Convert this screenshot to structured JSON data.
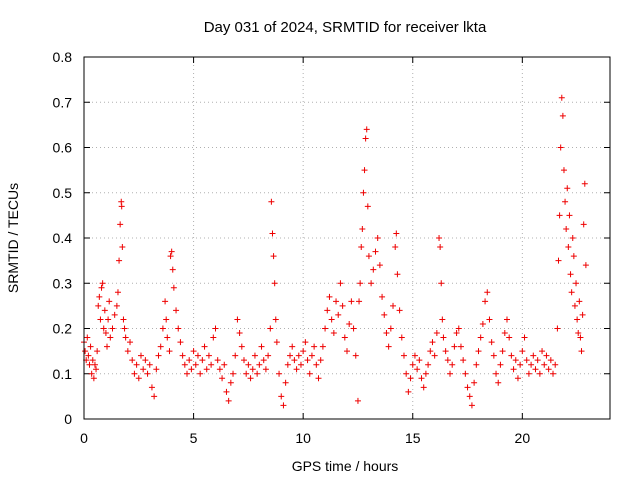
{
  "chart_data": {
    "type": "scatter",
    "title": "Day 031 of 2024, SRMTID for receiver lkta",
    "xlabel": "GPS time / hours",
    "ylabel": "SRMTID / TECUs",
    "xlim": [
      0,
      24
    ],
    "ylim": [
      0,
      0.8
    ],
    "xticks": [
      0,
      5,
      10,
      15,
      20
    ],
    "yticks": [
      0,
      0.1,
      0.2,
      0.3,
      0.4,
      0.5,
      0.6,
      0.7,
      0.8
    ],
    "grid": true,
    "marker": "+",
    "series": [
      {
        "name": "SRMTID",
        "color": "#ee0000",
        "points": [
          [
            0.0,
            0.17
          ],
          [
            0.05,
            0.15
          ],
          [
            0.1,
            0.13
          ],
          [
            0.15,
            0.18
          ],
          [
            0.2,
            0.14
          ],
          [
            0.25,
            0.12
          ],
          [
            0.3,
            0.16
          ],
          [
            0.35,
            0.1
          ],
          [
            0.4,
            0.13
          ],
          [
            0.45,
            0.09
          ],
          [
            0.5,
            0.12
          ],
          [
            0.55,
            0.11
          ],
          [
            0.6,
            0.15
          ],
          [
            0.65,
            0.25
          ],
          [
            0.7,
            0.27
          ],
          [
            0.75,
            0.22
          ],
          [
            0.8,
            0.29
          ],
          [
            0.85,
            0.3
          ],
          [
            0.9,
            0.2
          ],
          [
            0.95,
            0.24
          ],
          [
            1.0,
            0.19
          ],
          [
            1.05,
            0.16
          ],
          [
            1.1,
            0.22
          ],
          [
            1.15,
            0.26
          ],
          [
            1.2,
            0.18
          ],
          [
            1.3,
            0.2
          ],
          [
            1.4,
            0.23
          ],
          [
            1.5,
            0.25
          ],
          [
            1.55,
            0.28
          ],
          [
            1.6,
            0.35
          ],
          [
            1.65,
            0.43
          ],
          [
            1.7,
            0.48
          ],
          [
            1.72,
            0.47
          ],
          [
            1.75,
            0.38
          ],
          [
            1.8,
            0.22
          ],
          [
            1.85,
            0.2
          ],
          [
            1.9,
            0.18
          ],
          [
            2.0,
            0.15
          ],
          [
            2.1,
            0.17
          ],
          [
            2.2,
            0.13
          ],
          [
            2.3,
            0.1
          ],
          [
            2.4,
            0.12
          ],
          [
            2.5,
            0.09
          ],
          [
            2.6,
            0.14
          ],
          [
            2.7,
            0.11
          ],
          [
            2.8,
            0.13
          ],
          [
            2.9,
            0.1
          ],
          [
            3.0,
            0.12
          ],
          [
            3.1,
            0.07
          ],
          [
            3.2,
            0.05
          ],
          [
            3.3,
            0.11
          ],
          [
            3.4,
            0.14
          ],
          [
            3.5,
            0.16
          ],
          [
            3.6,
            0.2
          ],
          [
            3.7,
            0.26
          ],
          [
            3.75,
            0.22
          ],
          [
            3.8,
            0.18
          ],
          [
            3.9,
            0.15
          ],
          [
            3.95,
            0.36
          ],
          [
            4.0,
            0.37
          ],
          [
            4.05,
            0.33
          ],
          [
            4.1,
            0.29
          ],
          [
            4.2,
            0.24
          ],
          [
            4.3,
            0.2
          ],
          [
            4.4,
            0.17
          ],
          [
            4.5,
            0.14
          ],
          [
            4.6,
            0.12
          ],
          [
            4.7,
            0.1
          ],
          [
            4.8,
            0.13
          ],
          [
            4.9,
            0.11
          ],
          [
            5.0,
            0.15
          ],
          [
            5.1,
            0.12
          ],
          [
            5.2,
            0.14
          ],
          [
            5.3,
            0.1
          ],
          [
            5.4,
            0.13
          ],
          [
            5.5,
            0.16
          ],
          [
            5.6,
            0.11
          ],
          [
            5.7,
            0.14
          ],
          [
            5.8,
            0.12
          ],
          [
            5.9,
            0.18
          ],
          [
            6.0,
            0.2
          ],
          [
            6.1,
            0.13
          ],
          [
            6.2,
            0.11
          ],
          [
            6.3,
            0.09
          ],
          [
            6.4,
            0.12
          ],
          [
            6.5,
            0.06
          ],
          [
            6.6,
            0.04
          ],
          [
            6.7,
            0.08
          ],
          [
            6.8,
            0.1
          ],
          [
            6.9,
            0.14
          ],
          [
            7.0,
            0.22
          ],
          [
            7.1,
            0.19
          ],
          [
            7.2,
            0.16
          ],
          [
            7.3,
            0.13
          ],
          [
            7.4,
            0.1
          ],
          [
            7.5,
            0.12
          ],
          [
            7.6,
            0.09
          ],
          [
            7.7,
            0.11
          ],
          [
            7.8,
            0.14
          ],
          [
            7.9,
            0.1
          ],
          [
            8.0,
            0.12
          ],
          [
            8.1,
            0.16
          ],
          [
            8.2,
            0.13
          ],
          [
            8.3,
            0.11
          ],
          [
            8.4,
            0.14
          ],
          [
            8.5,
            0.2
          ],
          [
            8.55,
            0.48
          ],
          [
            8.6,
            0.41
          ],
          [
            8.65,
            0.36
          ],
          [
            8.7,
            0.3
          ],
          [
            8.75,
            0.22
          ],
          [
            8.8,
            0.17
          ],
          [
            8.9,
            0.1
          ],
          [
            9.0,
            0.05
          ],
          [
            9.1,
            0.03
          ],
          [
            9.2,
            0.08
          ],
          [
            9.3,
            0.12
          ],
          [
            9.4,
            0.14
          ],
          [
            9.5,
            0.16
          ],
          [
            9.6,
            0.13
          ],
          [
            9.7,
            0.11
          ],
          [
            9.8,
            0.14
          ],
          [
            9.9,
            0.12
          ],
          [
            10.0,
            0.15
          ],
          [
            10.1,
            0.17
          ],
          [
            10.2,
            0.13
          ],
          [
            10.3,
            0.1
          ],
          [
            10.4,
            0.14
          ],
          [
            10.5,
            0.16
          ],
          [
            10.6,
            0.12
          ],
          [
            10.7,
            0.09
          ],
          [
            10.8,
            0.13
          ],
          [
            10.9,
            0.16
          ],
          [
            11.0,
            0.2
          ],
          [
            11.1,
            0.24
          ],
          [
            11.2,
            0.27
          ],
          [
            11.3,
            0.22
          ],
          [
            11.4,
            0.19
          ],
          [
            11.5,
            0.26
          ],
          [
            11.6,
            0.23
          ],
          [
            11.7,
            0.3
          ],
          [
            11.8,
            0.25
          ],
          [
            11.9,
            0.18
          ],
          [
            12.0,
            0.15
          ],
          [
            12.1,
            0.21
          ],
          [
            12.2,
            0.26
          ],
          [
            12.3,
            0.2
          ],
          [
            12.4,
            0.14
          ],
          [
            12.5,
            0.04
          ],
          [
            12.55,
            0.26
          ],
          [
            12.6,
            0.3
          ],
          [
            12.65,
            0.38
          ],
          [
            12.7,
            0.42
          ],
          [
            12.75,
            0.5
          ],
          [
            12.8,
            0.55
          ],
          [
            12.85,
            0.62
          ],
          [
            12.9,
            0.64
          ],
          [
            12.95,
            0.47
          ],
          [
            13.0,
            0.36
          ],
          [
            13.1,
            0.3
          ],
          [
            13.2,
            0.33
          ],
          [
            13.3,
            0.37
          ],
          [
            13.4,
            0.4
          ],
          [
            13.5,
            0.34
          ],
          [
            13.6,
            0.27
          ],
          [
            13.7,
            0.23
          ],
          [
            13.8,
            0.19
          ],
          [
            13.9,
            0.16
          ],
          [
            14.0,
            0.2
          ],
          [
            14.1,
            0.25
          ],
          [
            14.2,
            0.38
          ],
          [
            14.25,
            0.41
          ],
          [
            14.3,
            0.32
          ],
          [
            14.4,
            0.24
          ],
          [
            14.5,
            0.18
          ],
          [
            14.6,
            0.14
          ],
          [
            14.7,
            0.1
          ],
          [
            14.8,
            0.06
          ],
          [
            14.9,
            0.09
          ],
          [
            15.0,
            0.12
          ],
          [
            15.1,
            0.14
          ],
          [
            15.2,
            0.11
          ],
          [
            15.3,
            0.13
          ],
          [
            15.4,
            0.09
          ],
          [
            15.5,
            0.07
          ],
          [
            15.6,
            0.1
          ],
          [
            15.7,
            0.12
          ],
          [
            15.8,
            0.15
          ],
          [
            15.9,
            0.17
          ],
          [
            16.0,
            0.14
          ],
          [
            16.1,
            0.19
          ],
          [
            16.2,
            0.4
          ],
          [
            16.25,
            0.38
          ],
          [
            16.3,
            0.3
          ],
          [
            16.35,
            0.22
          ],
          [
            16.4,
            0.18
          ],
          [
            16.5,
            0.15
          ],
          [
            16.6,
            0.13
          ],
          [
            16.7,
            0.1
          ],
          [
            16.8,
            0.12
          ],
          [
            16.9,
            0.16
          ],
          [
            17.0,
            0.19
          ],
          [
            17.1,
            0.2
          ],
          [
            17.2,
            0.16
          ],
          [
            17.3,
            0.13
          ],
          [
            17.4,
            0.1
          ],
          [
            17.5,
            0.07
          ],
          [
            17.6,
            0.05
          ],
          [
            17.7,
            0.03
          ],
          [
            17.8,
            0.08
          ],
          [
            17.9,
            0.12
          ],
          [
            18.0,
            0.15
          ],
          [
            18.1,
            0.18
          ],
          [
            18.2,
            0.21
          ],
          [
            18.3,
            0.26
          ],
          [
            18.4,
            0.28
          ],
          [
            18.5,
            0.22
          ],
          [
            18.6,
            0.17
          ],
          [
            18.7,
            0.14
          ],
          [
            18.8,
            0.1
          ],
          [
            18.9,
            0.08
          ],
          [
            19.0,
            0.12
          ],
          [
            19.1,
            0.15
          ],
          [
            19.2,
            0.19
          ],
          [
            19.3,
            0.22
          ],
          [
            19.4,
            0.18
          ],
          [
            19.5,
            0.14
          ],
          [
            19.6,
            0.11
          ],
          [
            19.7,
            0.13
          ],
          [
            19.8,
            0.09
          ],
          [
            19.9,
            0.12
          ],
          [
            20.0,
            0.15
          ],
          [
            20.1,
            0.18
          ],
          [
            20.2,
            0.13
          ],
          [
            20.3,
            0.1
          ],
          [
            20.4,
            0.12
          ],
          [
            20.5,
            0.14
          ],
          [
            20.6,
            0.11
          ],
          [
            20.7,
            0.13
          ],
          [
            20.8,
            0.1
          ],
          [
            20.9,
            0.15
          ],
          [
            21.0,
            0.12
          ],
          [
            21.1,
            0.14
          ],
          [
            21.2,
            0.11
          ],
          [
            21.3,
            0.13
          ],
          [
            21.4,
            0.1
          ],
          [
            21.5,
            0.12
          ],
          [
            21.6,
            0.2
          ],
          [
            21.65,
            0.35
          ],
          [
            21.7,
            0.45
          ],
          [
            21.75,
            0.6
          ],
          [
            21.8,
            0.71
          ],
          [
            21.85,
            0.67
          ],
          [
            21.9,
            0.55
          ],
          [
            21.95,
            0.48
          ],
          [
            22.0,
            0.42
          ],
          [
            22.05,
            0.51
          ],
          [
            22.1,
            0.38
          ],
          [
            22.15,
            0.45
          ],
          [
            22.2,
            0.32
          ],
          [
            22.25,
            0.28
          ],
          [
            22.3,
            0.4
          ],
          [
            22.35,
            0.36
          ],
          [
            22.4,
            0.25
          ],
          [
            22.45,
            0.3
          ],
          [
            22.5,
            0.22
          ],
          [
            22.55,
            0.19
          ],
          [
            22.6,
            0.26
          ],
          [
            22.65,
            0.18
          ],
          [
            22.7,
            0.15
          ],
          [
            22.75,
            0.23
          ],
          [
            22.8,
            0.43
          ],
          [
            22.85,
            0.52
          ],
          [
            22.9,
            0.34
          ]
        ]
      }
    ]
  }
}
